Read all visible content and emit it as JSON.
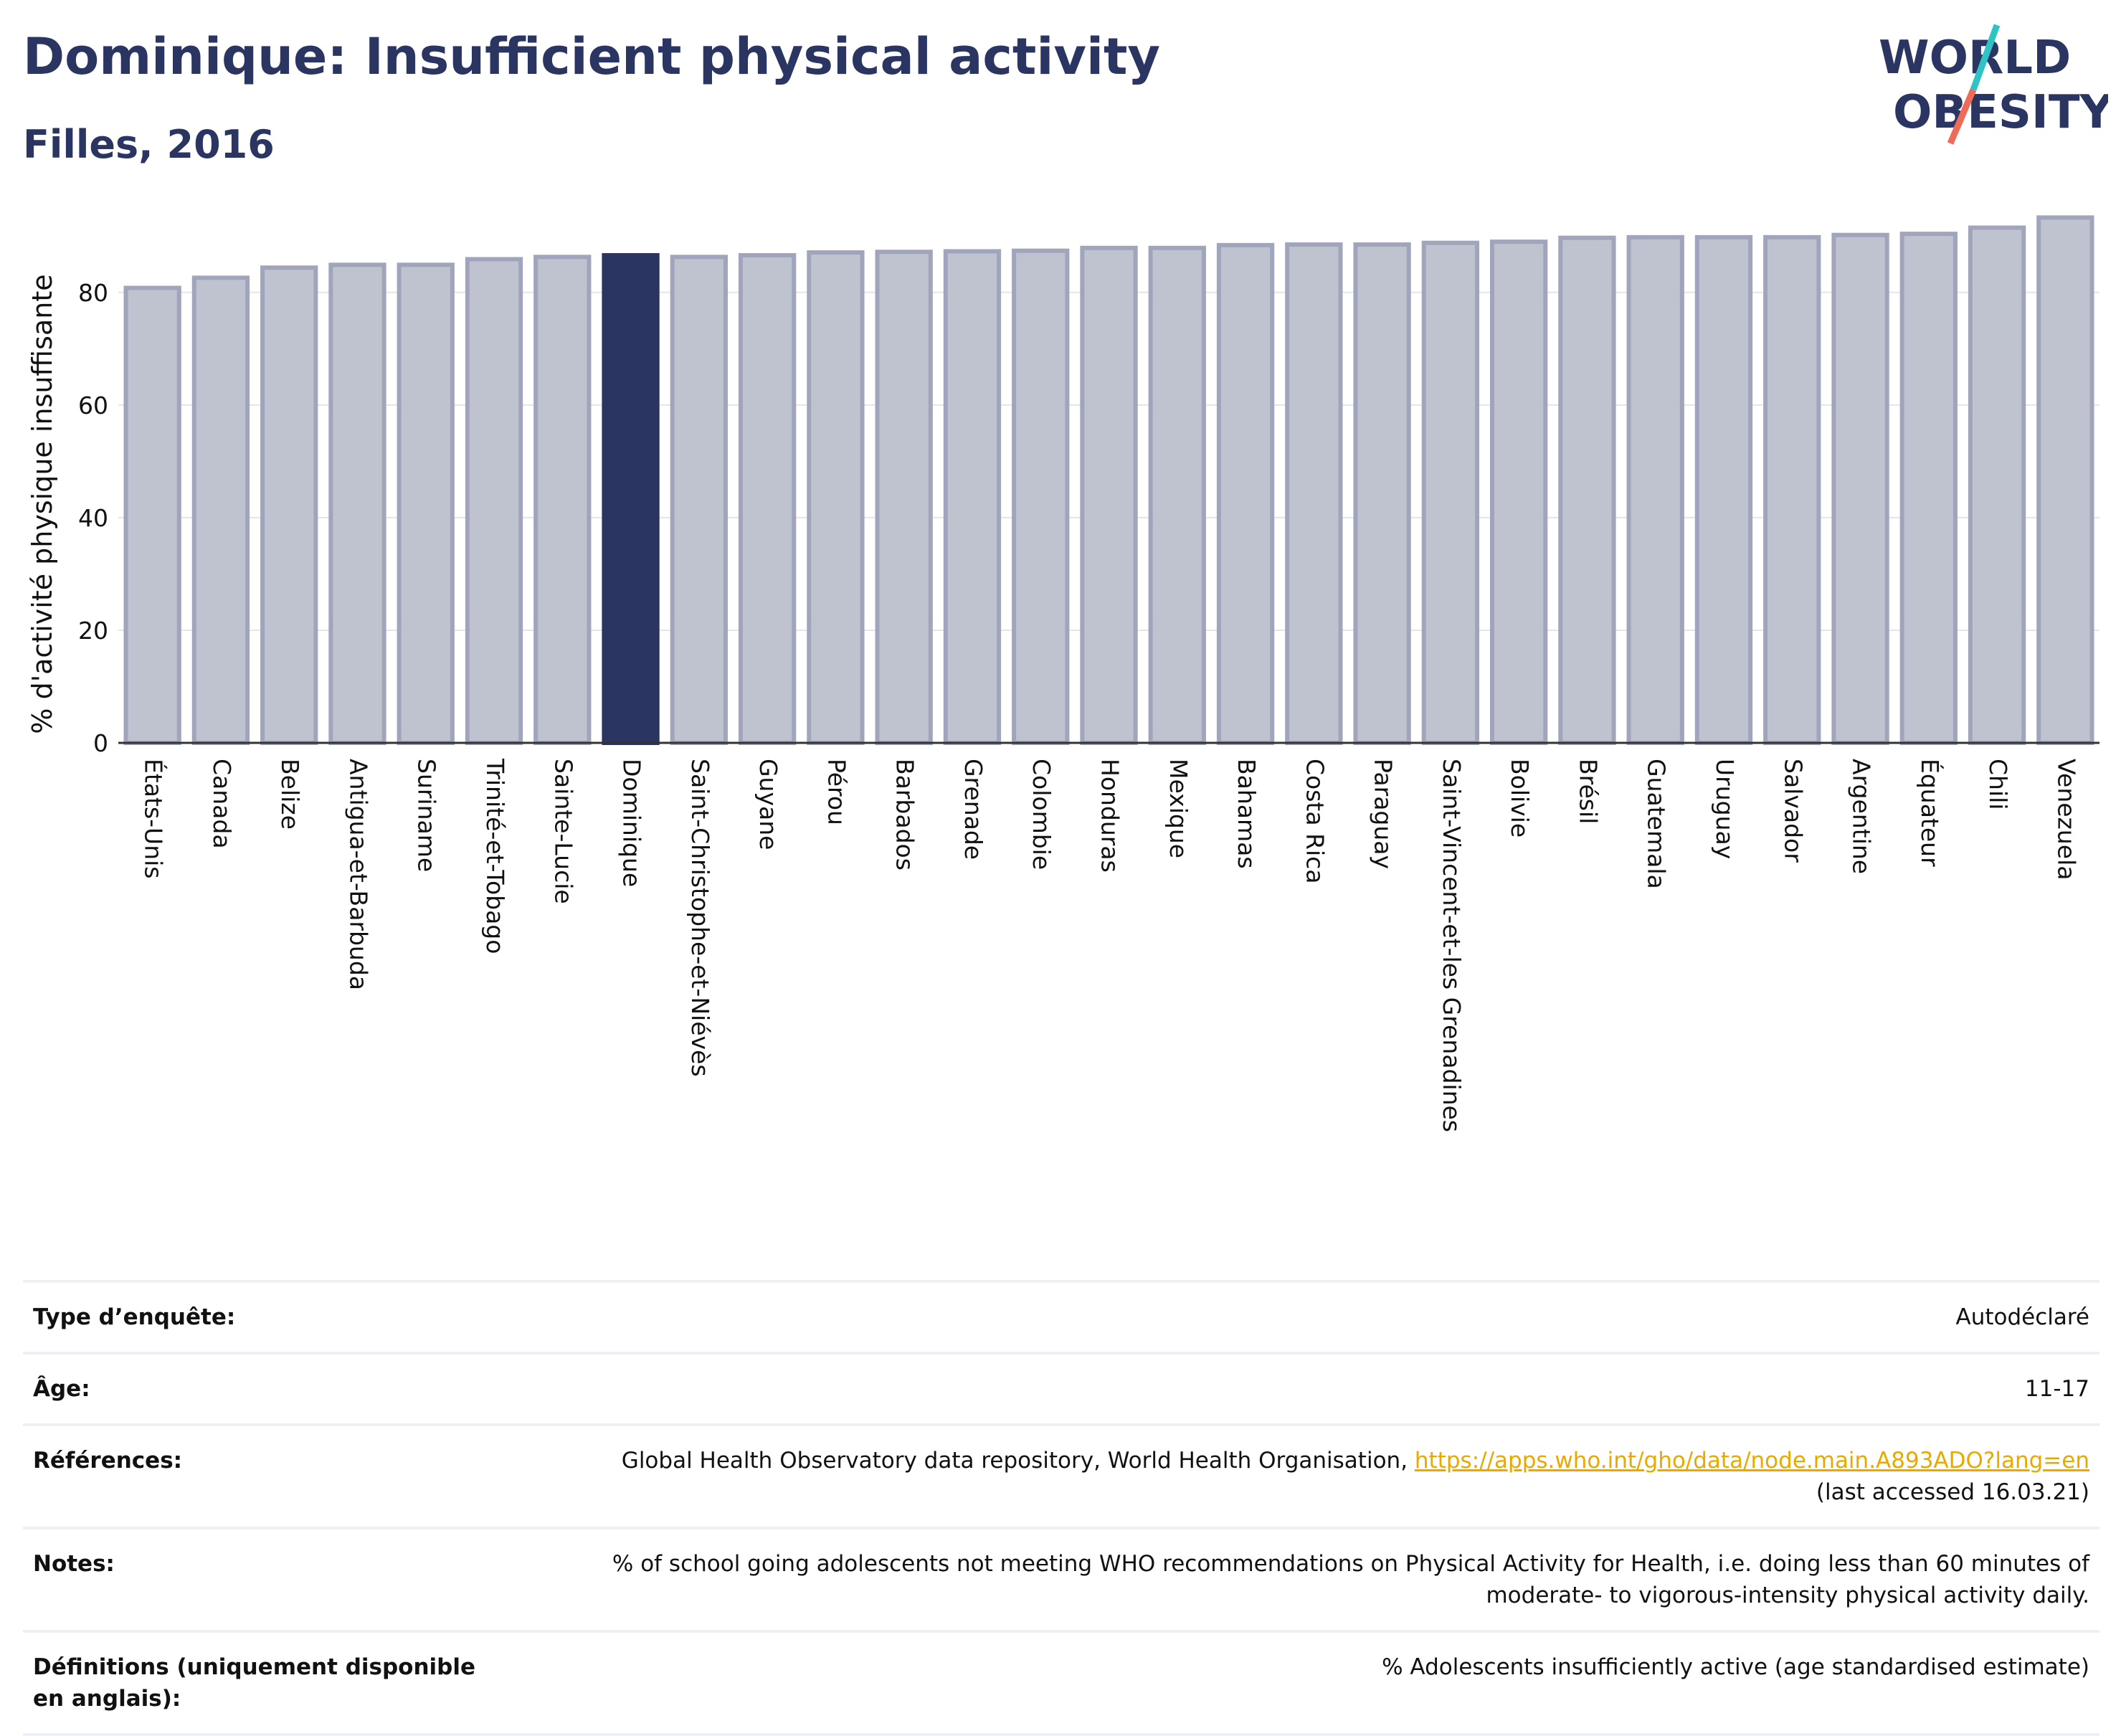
{
  "header": {
    "title": "Dominique: Insufficient physical activity",
    "subtitle": "Filles, 2016"
  },
  "logo": {
    "line1": "WORLD",
    "line2": "OBESITY",
    "colors": {
      "text": "#2b3561",
      "slash_top": "#2ec4c6",
      "slash_bottom": "#f06a5a"
    }
  },
  "chart_data": {
    "type": "bar",
    "title": "",
    "xlabel": "",
    "ylabel": "% d'activité physique insuffisante",
    "ylim": [
      0,
      95
    ],
    "yticks": [
      0,
      20,
      40,
      60,
      80
    ],
    "grid": true,
    "highlight": "Dominique",
    "colors": {
      "bar": "#bfc2cf",
      "bar_edge": "#a0a5bb",
      "highlight": "#2b3561"
    },
    "categories": [
      "États-Unis",
      "Canada",
      "Belize",
      "Antigua-et-Barbuda",
      "Suriname",
      "Trinité-et-Tobago",
      "Sainte-Lucie",
      "Dominique",
      "Saint-Christophe-et-Niévès",
      "Guyane",
      "Pérou",
      "Barbados",
      "Grenade",
      "Colombie",
      "Honduras",
      "Mexique",
      "Bahamas",
      "Costa Rica",
      "Paraguay",
      "Saint-Vincent-et-les Grenadines",
      "Bolivie",
      "Brésil",
      "Guatemala",
      "Uruguay",
      "Salvador",
      "Argentine",
      "Équateur",
      "Chili",
      "Venezuela"
    ],
    "values": [
      80.8,
      82.6,
      84.4,
      84.9,
      84.9,
      85.9,
      86.3,
      86.6,
      86.3,
      86.6,
      87.1,
      87.2,
      87.3,
      87.4,
      87.9,
      87.9,
      88.4,
      88.5,
      88.5,
      88.8,
      89.0,
      89.7,
      89.8,
      89.8,
      89.8,
      90.2,
      90.4,
      91.5,
      93.3
    ]
  },
  "meta": [
    {
      "label": "Type d’enquête:",
      "value": "Autodéclaré"
    },
    {
      "label": "Âge:",
      "value": "11-17"
    },
    {
      "label": "Références:",
      "value": "Global Health Observatory data repository, World Health Organisation, ",
      "link": "https://apps.who.int/gho/data/node.main.A893ADO?lang=en",
      "value2": "(last accessed 16.03.21)"
    },
    {
      "label": "Notes:",
      "value": "% of school going adolescents not meeting WHO recommendations on Physical Activity for Health, i.e. doing less than 60 minutes of moderate- to vigorous-intensity physical activity daily."
    },
    {
      "label": "Définitions (uniquement disponible en anglais):",
      "value": "% Adolescents insufficiently active (age standardised estimate)"
    }
  ]
}
